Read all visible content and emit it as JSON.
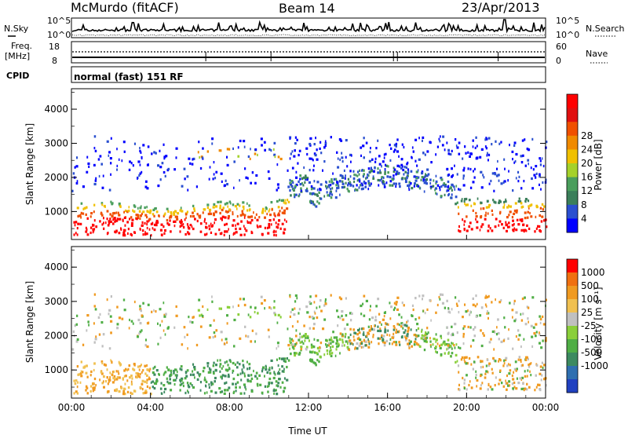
{
  "header": {
    "station": "McMurdo (fitACF)",
    "beam": "Beam 14",
    "date": "23/Apr/2013"
  },
  "summary_panels": {
    "nsky": {
      "label": "N.Sky",
      "top_tick": "10^5",
      "bottom_tick": "10^0"
    },
    "nsearch": {
      "label": "N.Search",
      "top_tick": "10^5",
      "bottom_tick": "10^0"
    },
    "freq": {
      "label_line1": "Freq.",
      "label_line2": "[MHz]",
      "ticks": [
        "18",
        "8"
      ]
    },
    "nave": {
      "label": "Nave",
      "ticks": [
        "60",
        "0"
      ]
    },
    "cpid": {
      "label": "CPID",
      "mode_text": "normal (fast) 151 RF"
    }
  },
  "chart_data": [
    {
      "type": "heatmap",
      "name": "power-panel",
      "ylabel": "Slant Range [km]",
      "yticks": [
        1000,
        2000,
        3000,
        4000
      ],
      "ylim": [
        180,
        4600
      ],
      "colorbar": {
        "label": "Power [dB]",
        "ticks": [
          "4",
          "8",
          "12",
          "16",
          "20",
          "24",
          "28"
        ],
        "colors": [
          "#0000ff",
          "#2a4fd0",
          "#3b7f5a",
          "#4a9e5c",
          "#a5d12a",
          "#f0c000",
          "#f08a00",
          "#f05000",
          "#e01010",
          "#ff0000"
        ]
      }
    },
    {
      "type": "heatmap",
      "name": "velocity-panel",
      "ylabel": "Slant Range [km]",
      "yticks": [
        1000,
        2000,
        3000,
        4000
      ],
      "ylim": [
        180,
        4600
      ],
      "colorbar": {
        "label": "Velocity [m s⁻¹]",
        "ticks": [
          "1000",
          "500",
          "100",
          "25",
          "-25",
          "-100",
          "-500",
          "-1000"
        ],
        "colors": [
          "#2040c0",
          "#2f6fb0",
          "#3c8a60",
          "#4fae45",
          "#8acf3a",
          "#c0c0c0",
          "#f0c050",
          "#f09a20",
          "#f07010",
          "#ff0000"
        ]
      }
    }
  ],
  "x_axis": {
    "label": "Time UT",
    "ticks": [
      "00:00",
      "04:00",
      "08:00",
      "12:00",
      "16:00",
      "20:00",
      "00:00"
    ],
    "range_hours": [
      0,
      24
    ]
  }
}
